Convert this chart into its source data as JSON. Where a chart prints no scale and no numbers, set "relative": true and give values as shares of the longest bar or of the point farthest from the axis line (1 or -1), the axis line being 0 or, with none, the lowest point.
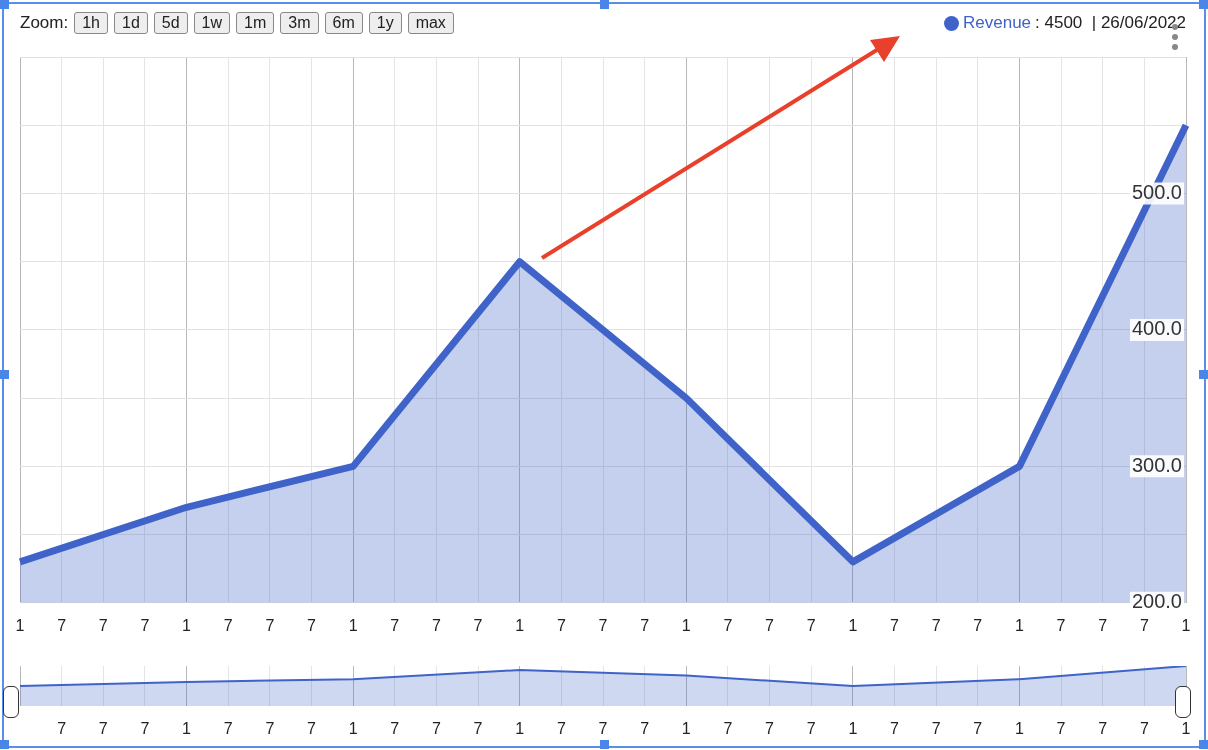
{
  "chart_data": [
    {
      "type": "area",
      "categories": [
        "1",
        "7",
        "7",
        "7",
        "1",
        "7",
        "7",
        "7",
        "1",
        "7",
        "7",
        "7",
        "1",
        "7",
        "7",
        "7",
        "1",
        "7",
        "7",
        "7",
        "1",
        "7",
        "7",
        "7",
        "1",
        "7",
        "7",
        "7",
        "1"
      ],
      "series": [
        {
          "name": "Revenue",
          "color": "#3f63c8",
          "values": [
            230,
            null,
            null,
            null,
            270,
            null,
            null,
            null,
            300,
            null,
            null,
            null,
            450,
            null,
            null,
            null,
            350,
            null,
            null,
            null,
            230,
            null,
            null,
            null,
            300,
            null,
            null,
            null,
            550
          ]
        }
      ],
      "ylim": [
        200,
        600
      ],
      "yticks": [
        {
          "value": 200,
          "label": "200.0"
        },
        {
          "value": 250,
          "label": null
        },
        {
          "value": 300,
          "label": "300.0"
        },
        {
          "value": 350,
          "label": null
        },
        {
          "value": 400,
          "label": "400.0"
        },
        {
          "value": 450,
          "label": null
        },
        {
          "value": 500,
          "label": "500.0"
        },
        {
          "value": 550,
          "label": null
        },
        {
          "value": 600,
          "label": null
        }
      ],
      "grid": true,
      "legend": "top right",
      "annotations": [
        "Zoom:",
        "1h",
        "1d",
        "5d",
        "1w",
        "1m",
        "3m",
        "6m",
        "1y",
        "max",
        ": 4500  | 26/06/2022"
      ]
    },
    {
      "type": "area",
      "categories": [
        null,
        "7",
        "7",
        "7",
        "1",
        "7",
        "7",
        "7",
        "1",
        "7",
        "7",
        "7",
        "1",
        "7",
        "7",
        "7",
        "1",
        "7",
        "7",
        "7",
        "1",
        "7",
        "7",
        "7",
        "1",
        "7",
        "7",
        "7",
        "1"
      ],
      "values": [
        0.5,
        null,
        null,
        null,
        0.6,
        null,
        null,
        null,
        0.67,
        null,
        null,
        null,
        0.9,
        null,
        null,
        null,
        0.76,
        null,
        null,
        null,
        0.5,
        null,
        null,
        null,
        0.67,
        null,
        null,
        null,
        1
      ],
      "color": "#3f63c8",
      "relative": true,
      "grid": "x"
    }
  ]
}
